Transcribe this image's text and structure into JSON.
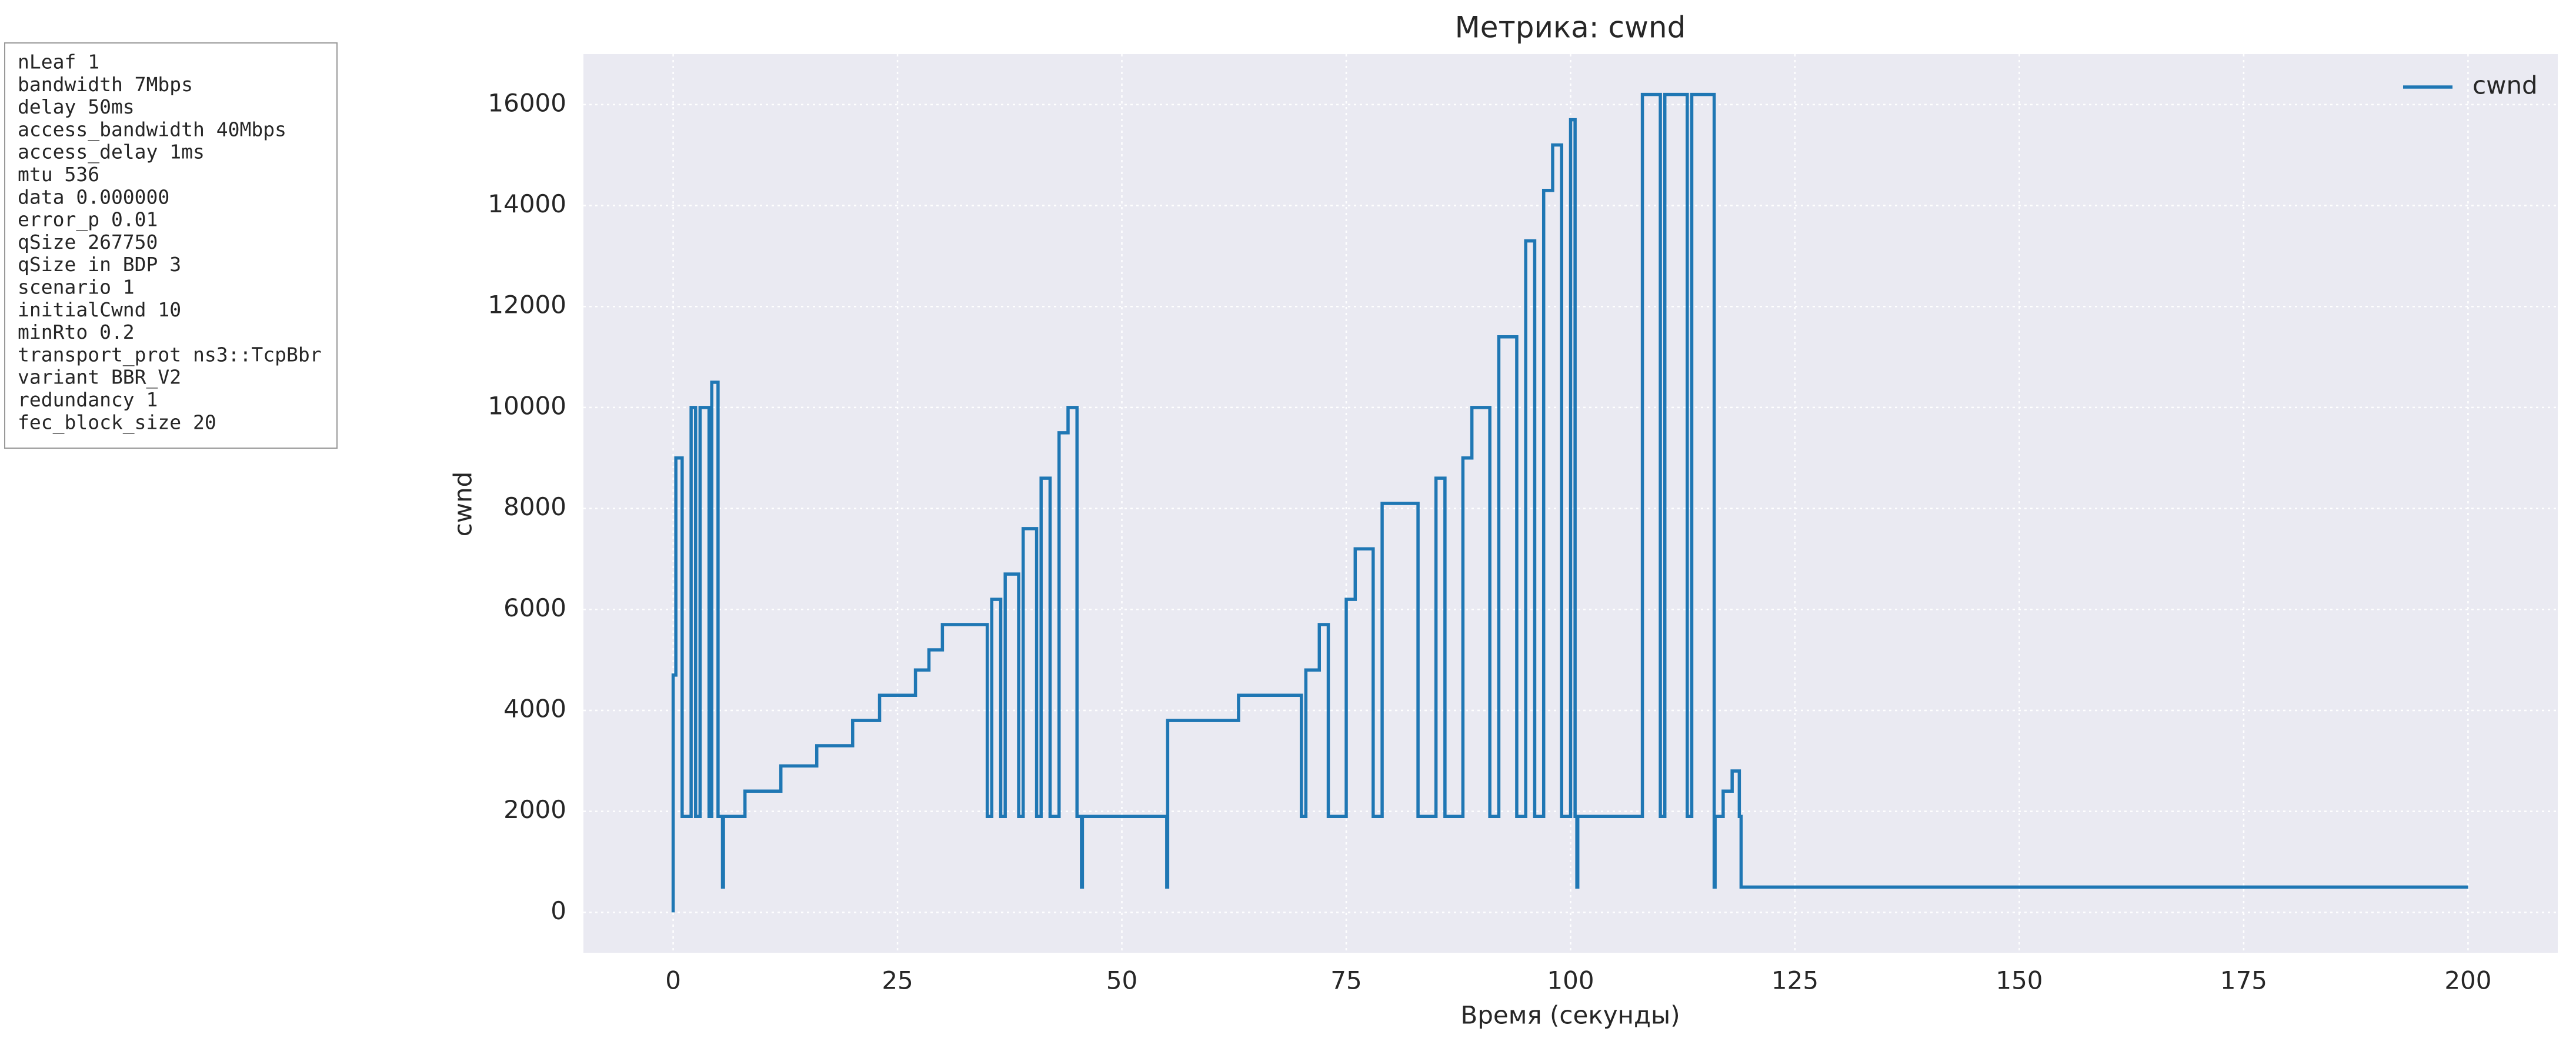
{
  "chart_data": {
    "type": "line",
    "title": "Метрика: cwnd",
    "xlabel": "Время (секунды)",
    "ylabel": "cwnd",
    "annotation": [
      "nLeaf 1",
      "bandwidth 7Mbps",
      "delay  50ms",
      "access_bandwidth 40Mbps",
      "access_delay 1ms",
      "mtu 536",
      "data  0.000000",
      "error_p 0.01",
      "qSize 267750",
      "qSize in BDP 3",
      "scenario 1",
      "initialCwnd  10",
      "minRto 0.2",
      "transport_prot ns3::TcpBbr",
      "variant BBR_V2",
      "redundancy 1",
      "fec_block_size 20"
    ],
    "x": [
      0,
      0,
      0.3,
      0.3,
      1,
      1,
      2,
      2,
      2.5,
      2.5,
      3,
      3,
      4,
      4,
      4.3,
      4.3,
      5,
      5,
      5.5,
      5.5,
      5.6,
      5.6,
      8,
      8,
      12,
      12,
      16,
      16,
      20,
      20,
      23,
      23,
      27,
      27,
      28.5,
      28.5,
      30,
      30,
      35,
      35,
      35.5,
      35.5,
      36.5,
      36.5,
      37,
      37,
      38.5,
      38.5,
      39,
      39,
      40.5,
      40.5,
      41,
      41,
      42,
      42,
      43,
      43,
      44,
      44,
      45,
      45,
      45.5,
      45.5,
      45.6,
      45.6,
      55,
      55,
      55.1,
      55.1,
      63,
      63,
      70,
      70,
      70.5,
      70.5,
      72,
      72,
      73,
      73,
      75,
      75,
      76,
      76,
      78,
      78,
      79,
      79,
      83,
      83,
      85,
      85,
      86,
      86,
      88,
      88,
      89,
      89,
      91,
      91,
      92,
      92,
      94,
      94,
      95,
      95,
      96,
      96,
      97,
      97,
      98,
      98,
      99,
      99,
      100,
      100,
      100.5,
      100.5,
      100.7,
      100.7,
      100.8,
      100.8,
      108,
      108,
      110,
      110,
      110.5,
      110.5,
      113,
      113,
      113.5,
      113.5,
      116,
      116,
      116.1,
      116.1,
      117,
      117,
      118,
      118,
      118.8,
      118.8,
      119,
      119,
      200
    ],
    "series": [
      {
        "name": "cwnd",
        "color": "#1f77b4",
        "values": [
          0,
          4700,
          4700,
          9000,
          9000,
          1900,
          1900,
          10000,
          10000,
          1900,
          1900,
          10000,
          10000,
          1900,
          1900,
          10500,
          10500,
          1900,
          1900,
          500,
          500,
          1900,
          1900,
          2400,
          2400,
          2900,
          2900,
          3300,
          3300,
          3800,
          3800,
          4300,
          4300,
          4800,
          4800,
          5200,
          5200,
          5700,
          5700,
          1900,
          1900,
          6200,
          6200,
          1900,
          1900,
          6700,
          6700,
          1900,
          1900,
          7600,
          7600,
          1900,
          1900,
          8600,
          8600,
          1900,
          1900,
          9500,
          9500,
          10000,
          10000,
          1900,
          1900,
          500,
          500,
          1900,
          1900,
          500,
          500,
          3800,
          3800,
          4300,
          4300,
          1900,
          1900,
          4800,
          4800,
          5700,
          5700,
          1900,
          1900,
          6200,
          6200,
          7200,
          7200,
          1900,
          1900,
          8100,
          8100,
          1900,
          1900,
          8600,
          8600,
          1900,
          1900,
          9000,
          9000,
          10000,
          10000,
          1900,
          1900,
          11400,
          11400,
          1900,
          1900,
          13300,
          13300,
          1900,
          1900,
          14300,
          14300,
          15200,
          15200,
          1900,
          1900,
          15700,
          15700,
          1900,
          1900,
          500,
          500,
          1900,
          1900,
          16200,
          16200,
          1900,
          1900,
          16200,
          16200,
          1900,
          1900,
          16200,
          16200,
          500,
          500,
          1900,
          1900,
          2400,
          2400,
          2800,
          2800,
          1900,
          1900,
          500,
          500
        ]
      }
    ],
    "xlim": [
      -10,
      210
    ],
    "ylim": [
      -800,
      17000
    ],
    "xticks": [
      0,
      25,
      50,
      75,
      100,
      125,
      150,
      175,
      200
    ],
    "yticks": [
      0,
      2000,
      4000,
      6000,
      8000,
      10000,
      12000,
      14000,
      16000
    ],
    "grid": true,
    "legend": "upper right"
  }
}
